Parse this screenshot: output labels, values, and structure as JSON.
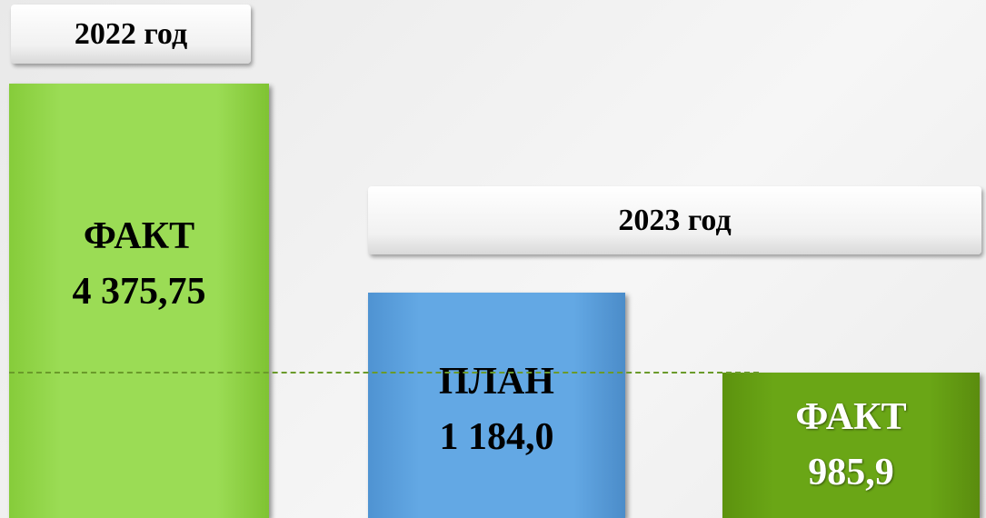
{
  "header_2022": "2022 год",
  "header_2023": "2023 год",
  "blocks": [
    {
      "label": "ФАКТ",
      "value": "4 375,75"
    },
    {
      "label": "ПЛАН",
      "value": "1 184,0"
    },
    {
      "label": "ФАКТ",
      "value": "985,9"
    }
  ]
}
